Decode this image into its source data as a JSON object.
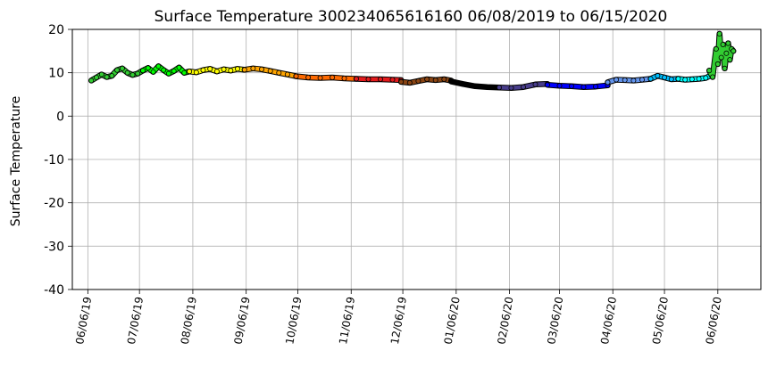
{
  "chart_data": {
    "type": "scatter",
    "title": "Surface Temperature 300234065616160  06/08/2019 to 06/15/2020",
    "xlabel": "",
    "ylabel": "Surface Temperature",
    "xlim": [
      "2019-05-28",
      "2020-07-01"
    ],
    "ylim": [
      -40,
      20
    ],
    "yticks": [
      -40,
      -30,
      -20,
      -10,
      0,
      10,
      20
    ],
    "xticks": [
      "2019-06-06",
      "2019-07-06",
      "2019-08-06",
      "2019-09-06",
      "2019-10-06",
      "2019-11-06",
      "2019-12-06",
      "2020-01-06",
      "2020-02-06",
      "2020-03-06",
      "2020-04-06",
      "2020-05-06",
      "2020-06-06"
    ],
    "xtick_labels": [
      "06/06/19",
      "07/06/19",
      "08/06/19",
      "09/06/19",
      "10/06/19",
      "11/06/19",
      "12/06/19",
      "01/06/20",
      "02/06/20",
      "03/06/20",
      "04/06/20",
      "05/06/20",
      "06/06/20"
    ],
    "grid": true,
    "marker_edge_color": "#000000",
    "series": [
      {
        "color": "#32cd32",
        "x": [
          "2019-06-08",
          "2019-06-11",
          "2019-06-14",
          "2019-06-17",
          "2019-06-20",
          "2019-06-23",
          "2019-06-26",
          "2019-06-29",
          "2019-07-02",
          "2019-07-05",
          "2019-07-08"
        ],
        "y": [
          8.2,
          8.9,
          9.6,
          9.0,
          9.3,
          10.6,
          11.0,
          10.0,
          9.5,
          9.8,
          10.5
        ]
      },
      {
        "color": "#00ff00",
        "x": [
          "2019-07-08",
          "2019-07-11",
          "2019-07-14",
          "2019-07-17",
          "2019-07-20",
          "2019-07-23",
          "2019-07-26",
          "2019-07-29",
          "2019-08-01",
          "2019-08-04"
        ],
        "y": [
          10.5,
          11.1,
          10.2,
          11.5,
          10.6,
          9.8,
          10.4,
          11.2,
          10.0,
          10.3
        ]
      },
      {
        "color": "#ffff00",
        "x": [
          "2019-08-04",
          "2019-08-08",
          "2019-08-12",
          "2019-08-16",
          "2019-08-20",
          "2019-08-24",
          "2019-08-28",
          "2019-09-01",
          "2019-09-05"
        ],
        "y": [
          10.3,
          10.1,
          10.6,
          10.9,
          10.3,
          10.8,
          10.5,
          10.9,
          10.7
        ]
      },
      {
        "color": "#ffa500",
        "x": [
          "2019-09-05",
          "2019-09-10",
          "2019-09-15",
          "2019-09-20",
          "2019-09-25",
          "2019-09-30",
          "2019-10-05"
        ],
        "y": [
          10.7,
          11.0,
          10.8,
          10.4,
          10.0,
          9.6,
          9.2
        ]
      },
      {
        "color": "#ff6a00",
        "x": [
          "2019-10-05",
          "2019-10-12",
          "2019-10-19",
          "2019-10-26",
          "2019-11-02",
          "2019-11-09"
        ],
        "y": [
          9.2,
          8.9,
          8.8,
          8.9,
          8.7,
          8.6
        ]
      },
      {
        "color": "#e31a1c",
        "x": [
          "2019-11-09",
          "2019-11-16",
          "2019-11-23",
          "2019-11-30",
          "2019-12-05"
        ],
        "y": [
          8.6,
          8.5,
          8.5,
          8.4,
          8.3
        ]
      },
      {
        "color": "#8b4513",
        "x": [
          "2019-12-05",
          "2019-12-10",
          "2019-12-15",
          "2019-12-20",
          "2019-12-25",
          "2019-12-30",
          "2020-01-03"
        ],
        "y": [
          7.9,
          7.7,
          8.1,
          8.5,
          8.3,
          8.5,
          8.2
        ]
      },
      {
        "color": "#000000",
        "x": [
          "2020-01-03",
          "2020-01-10",
          "2020-01-17",
          "2020-01-24",
          "2020-01-31"
        ],
        "y": [
          8.0,
          7.4,
          6.9,
          6.7,
          6.6
        ]
      },
      {
        "color": "#483d8b",
        "x": [
          "2020-01-31",
          "2020-02-07",
          "2020-02-14",
          "2020-02-21",
          "2020-02-28"
        ],
        "y": [
          6.6,
          6.5,
          6.7,
          7.3,
          7.4
        ]
      },
      {
        "color": "#0000ff",
        "x": [
          "2020-02-28",
          "2020-03-06",
          "2020-03-13",
          "2020-03-20",
          "2020-03-27",
          "2020-04-03"
        ],
        "y": [
          7.2,
          7.0,
          6.9,
          6.7,
          6.8,
          7.1
        ]
      },
      {
        "color": "#6495ed",
        "x": [
          "2020-04-03",
          "2020-04-08",
          "2020-04-13",
          "2020-04-18",
          "2020-04-23",
          "2020-04-28"
        ],
        "y": [
          7.8,
          8.4,
          8.3,
          8.2,
          8.4,
          8.6
        ]
      },
      {
        "color": "#00bfff",
        "x": [
          "2020-04-28",
          "2020-05-02",
          "2020-05-06",
          "2020-05-10",
          "2020-05-14"
        ],
        "y": [
          8.6,
          9.3,
          8.9,
          8.5,
          8.6
        ]
      },
      {
        "color": "#00ffff",
        "x": [
          "2020-05-14",
          "2020-05-18",
          "2020-05-22",
          "2020-05-26",
          "2020-05-30",
          "2020-06-03"
        ],
        "y": [
          8.6,
          8.4,
          8.5,
          8.6,
          8.8,
          9.6
        ]
      },
      {
        "color": "#32cd32",
        "x": [
          "2020-06-01",
          "2020-06-03",
          "2020-06-05",
          "2020-06-06",
          "2020-06-07",
          "2020-06-08",
          "2020-06-09",
          "2020-06-10",
          "2020-06-11",
          "2020-06-12",
          "2020-06-13",
          "2020-06-14",
          "2020-06-15"
        ],
        "y": [
          10.5,
          9.0,
          15.5,
          12.0,
          19.0,
          13.5,
          16.5,
          11.0,
          14.5,
          16.8,
          13.0,
          15.5,
          15.0
        ]
      }
    ]
  }
}
